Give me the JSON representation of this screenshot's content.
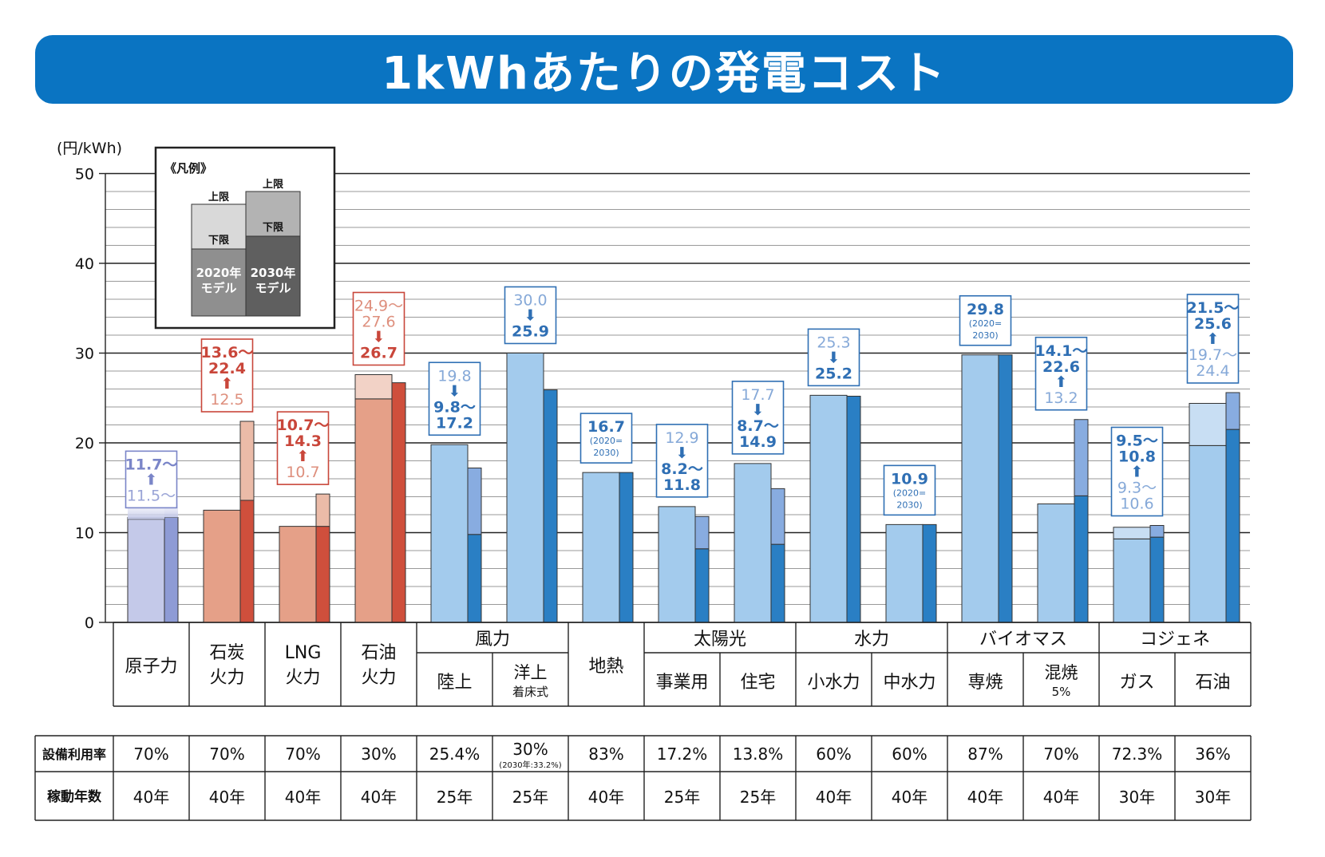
{
  "title": "1kWhあたりの発電コスト",
  "chart_data": {
    "type": "bar",
    "unit_label": "(円/kWh)",
    "ylim": [
      0,
      50
    ],
    "yticks": [
      0,
      10,
      20,
      30,
      40,
      50
    ],
    "grid": true,
    "legend": {
      "heading": "《凡例》",
      "upper": "上限",
      "lower": "下限",
      "model_2020": [
        "2020年",
        "モデル"
      ],
      "model_2030": [
        "2030年",
        "モデル"
      ]
    },
    "categories": [
      {
        "id": "nuclear",
        "label": [
          "原子力"
        ],
        "group": "",
        "color": "purple",
        "v2020": [
          11.5,
          11.7
        ],
        "v2030": [
          11.7,
          11.7
        ],
        "callout": [
          {
            "t": "11.7～",
            "c": "d"
          },
          {
            "t": "⬆",
            "c": "d"
          },
          {
            "t": "11.5～",
            "c": "l"
          }
        ]
      },
      {
        "id": "coal",
        "label": [
          "石炭",
          "火力"
        ],
        "group": "",
        "color": "red",
        "v2020": [
          12.5,
          12.5
        ],
        "v2030": [
          13.6,
          22.4
        ],
        "callout": [
          {
            "t": "13.6～",
            "c": "d"
          },
          {
            "t": "22.4",
            "c": "d"
          },
          {
            "t": "⬆",
            "c": "d"
          },
          {
            "t": "12.5",
            "c": "l"
          }
        ]
      },
      {
        "id": "lng",
        "label": [
          "LNG",
          "火力"
        ],
        "group": "",
        "color": "red",
        "v2020": [
          10.7,
          10.7
        ],
        "v2030": [
          10.7,
          14.3
        ],
        "callout": [
          {
            "t": "10.7～",
            "c": "d"
          },
          {
            "t": "14.3",
            "c": "d"
          },
          {
            "t": "⬆",
            "c": "d"
          },
          {
            "t": "10.7",
            "c": "l"
          }
        ]
      },
      {
        "id": "oil",
        "label": [
          "石油",
          "火力"
        ],
        "group": "",
        "color": "red",
        "v2020": [
          24.9,
          27.6
        ],
        "v2030": [
          26.7,
          26.7
        ],
        "callout": [
          {
            "t": "24.9～",
            "c": "l"
          },
          {
            "t": "27.6",
            "c": "l"
          },
          {
            "t": "⬇",
            "c": "d"
          },
          {
            "t": "26.7",
            "c": "d"
          }
        ]
      },
      {
        "id": "wind-onshore",
        "label": [
          "陸上"
        ],
        "group": "風力",
        "color": "blue",
        "v2020": [
          19.8,
          19.8
        ],
        "v2030": [
          9.8,
          17.2
        ],
        "callout": [
          {
            "t": "19.8",
            "c": "l"
          },
          {
            "t": "⬇",
            "c": "d"
          },
          {
            "t": "9.8～",
            "c": "d"
          },
          {
            "t": "17.2",
            "c": "d"
          }
        ]
      },
      {
        "id": "wind-offshore",
        "label": [
          "洋上",
          "着床式"
        ],
        "group": "風力",
        "color": "blue",
        "v2020": [
          30.0,
          30.0
        ],
        "v2030": [
          25.9,
          25.9
        ],
        "callout": [
          {
            "t": "30.0",
            "c": "l"
          },
          {
            "t": "⬇",
            "c": "d"
          },
          {
            "t": "25.9",
            "c": "d"
          }
        ]
      },
      {
        "id": "geothermal",
        "label": [
          "地熱"
        ],
        "group": "",
        "color": "blue",
        "v2020": [
          16.7,
          16.7
        ],
        "v2030": [
          16.7,
          16.7
        ],
        "callout": [
          {
            "t": "16.7",
            "c": "d"
          },
          {
            "t": "(2020=",
            "c": "s"
          },
          {
            "t": "2030)",
            "c": "s"
          }
        ]
      },
      {
        "id": "solar-utility",
        "label": [
          "事業用"
        ],
        "group": "太陽光",
        "color": "blue",
        "v2020": [
          12.9,
          12.9
        ],
        "v2030": [
          8.2,
          11.8
        ],
        "callout": [
          {
            "t": "12.9",
            "c": "l"
          },
          {
            "t": "⬇",
            "c": "d"
          },
          {
            "t": "8.2～",
            "c": "d"
          },
          {
            "t": "11.8",
            "c": "d"
          }
        ]
      },
      {
        "id": "solar-residential",
        "label": [
          "住宅"
        ],
        "group": "太陽光",
        "color": "blue",
        "v2020": [
          17.7,
          17.7
        ],
        "v2030": [
          8.7,
          14.9
        ],
        "callout": [
          {
            "t": "17.7",
            "c": "l"
          },
          {
            "t": "⬇",
            "c": "d"
          },
          {
            "t": "8.7～",
            "c": "d"
          },
          {
            "t": "14.9",
            "c": "d"
          }
        ]
      },
      {
        "id": "hydro-small",
        "label": [
          "小水力"
        ],
        "group": "水力",
        "color": "blue",
        "v2020": [
          25.3,
          25.3
        ],
        "v2030": [
          25.2,
          25.2
        ],
        "callout": [
          {
            "t": "25.3",
            "c": "l"
          },
          {
            "t": "⬇",
            "c": "d"
          },
          {
            "t": "25.2",
            "c": "d"
          }
        ]
      },
      {
        "id": "hydro-medium",
        "label": [
          "中水力"
        ],
        "group": "水力",
        "color": "blue",
        "v2020": [
          10.9,
          10.9
        ],
        "v2030": [
          10.9,
          10.9
        ],
        "callout": [
          {
            "t": "10.9",
            "c": "d"
          },
          {
            "t": "(2020=",
            "c": "s"
          },
          {
            "t": "2030)",
            "c": "s"
          }
        ]
      },
      {
        "id": "biomass-dedicated",
        "label": [
          "専焼"
        ],
        "group": "バイオマス",
        "color": "blue",
        "v2020": [
          29.8,
          29.8
        ],
        "v2030": [
          29.8,
          29.8
        ],
        "callout": [
          {
            "t": "29.8",
            "c": "d"
          },
          {
            "t": "(2020=",
            "c": "s"
          },
          {
            "t": "2030)",
            "c": "s"
          }
        ]
      },
      {
        "id": "biomass-cofiring",
        "label": [
          "混焼",
          "5%"
        ],
        "group": "バイオマス",
        "color": "blue",
        "v2020": [
          13.2,
          13.2
        ],
        "v2030": [
          14.1,
          22.6
        ],
        "callout": [
          {
            "t": "14.1～",
            "c": "d"
          },
          {
            "t": "22.6",
            "c": "d"
          },
          {
            "t": "⬆",
            "c": "d"
          },
          {
            "t": "13.2",
            "c": "l"
          }
        ]
      },
      {
        "id": "cogen-gas",
        "label": [
          "ガス"
        ],
        "group": "コジェネ",
        "color": "blue",
        "v2020": [
          9.3,
          10.6
        ],
        "v2030": [
          9.5,
          10.8
        ],
        "callout": [
          {
            "t": "9.5～",
            "c": "d"
          },
          {
            "t": "10.8",
            "c": "d"
          },
          {
            "t": "⬆",
            "c": "d"
          },
          {
            "t": "9.3～",
            "c": "l"
          },
          {
            "t": "10.6",
            "c": "l"
          }
        ]
      },
      {
        "id": "cogen-oil",
        "label": [
          "石油"
        ],
        "group": "コジェネ",
        "color": "blue",
        "v2020": [
          19.7,
          24.4
        ],
        "v2030": [
          21.5,
          25.6
        ],
        "callout": [
          {
            "t": "21.5～",
            "c": "d"
          },
          {
            "t": "25.6",
            "c": "d"
          },
          {
            "t": "⬆",
            "c": "d"
          },
          {
            "t": "19.7～",
            "c": "l"
          },
          {
            "t": "24.4",
            "c": "l"
          }
        ]
      }
    ]
  },
  "table": {
    "row1_label": "設備利用率",
    "row2_label": "稼動年数",
    "utilization": [
      "70%",
      "70%",
      "70%",
      "30%",
      "25.4%",
      "30%",
      "83%",
      "17.2%",
      "13.8%",
      "60%",
      "60%",
      "87%",
      "70%",
      "72.3%",
      "36%"
    ],
    "utilization_note": "(2030年:33.2%)",
    "years": [
      "40年",
      "40年",
      "40年",
      "40年",
      "25年",
      "25年",
      "40年",
      "25年",
      "25年",
      "40年",
      "40年",
      "40年",
      "40年",
      "30年",
      "30年"
    ]
  }
}
